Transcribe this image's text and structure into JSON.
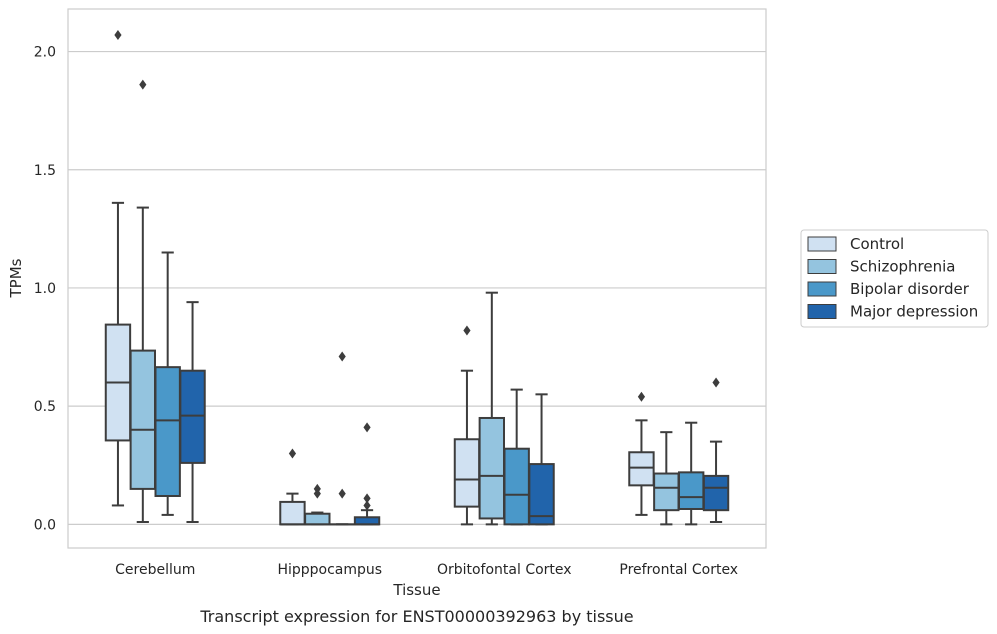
{
  "chart_data": {
    "type": "box",
    "caption": "Transcript expression for ENST00000392963 by tissue",
    "xlabel": "Tissue",
    "ylabel": "TPMs",
    "ylim": [
      -0.1,
      2.18
    ],
    "yticks": [
      0.0,
      0.5,
      1.0,
      1.5,
      2.0
    ],
    "ytick_labels": [
      "0.0",
      "0.5",
      "1.0",
      "1.5",
      "2.0"
    ],
    "grid": "horizontal",
    "legend_position": "right",
    "categories": [
      "Cerebellum",
      "Hipppocampus",
      "Orbitofontal Cortex",
      "Prefrontal Cortex"
    ],
    "series": [
      {
        "name": "Control",
        "color": "#d0e1f2",
        "boxes": [
          {
            "whislo": 0.08,
            "q1": 0.355,
            "med": 0.6,
            "q3": 0.845,
            "whishi": 1.36,
            "fliers": [
              2.07
            ]
          },
          {
            "whislo": 0.0,
            "q1": 0.0,
            "med": 0.0,
            "q3": 0.095,
            "whishi": 0.13,
            "fliers": [
              0.3
            ]
          },
          {
            "whislo": 0.0,
            "q1": 0.075,
            "med": 0.19,
            "q3": 0.36,
            "whishi": 0.65,
            "fliers": [
              0.82
            ]
          },
          {
            "whislo": 0.04,
            "q1": 0.165,
            "med": 0.24,
            "q3": 0.305,
            "whishi": 0.44,
            "fliers": [
              0.54
            ]
          }
        ]
      },
      {
        "name": "Schizophrenia",
        "color": "#94c4df",
        "boxes": [
          {
            "whislo": 0.01,
            "q1": 0.15,
            "med": 0.4,
            "q3": 0.735,
            "whishi": 1.34,
            "fliers": [
              1.86
            ]
          },
          {
            "whislo": 0.0,
            "q1": 0.0,
            "med": 0.0,
            "q3": 0.045,
            "whishi": 0.05,
            "fliers": [
              0.13,
              0.15
            ]
          },
          {
            "whislo": 0.0,
            "q1": 0.025,
            "med": 0.205,
            "q3": 0.45,
            "whishi": 0.98,
            "fliers": []
          },
          {
            "whislo": 0.0,
            "q1": 0.06,
            "med": 0.155,
            "q3": 0.215,
            "whishi": 0.39,
            "fliers": []
          }
        ]
      },
      {
        "name": "Bipolar disorder",
        "color": "#4a98c9",
        "boxes": [
          {
            "whislo": 0.04,
            "q1": 0.12,
            "med": 0.44,
            "q3": 0.665,
            "whishi": 1.15,
            "fliers": []
          },
          {
            "whislo": 0.0,
            "q1": 0.0,
            "med": 0.0,
            "q3": 0.0,
            "whishi": 0.0,
            "fliers": [
              0.13,
              0.71
            ]
          },
          {
            "whislo": 0.0,
            "q1": 0.0,
            "med": 0.125,
            "q3": 0.32,
            "whishi": 0.57,
            "fliers": []
          },
          {
            "whislo": 0.0,
            "q1": 0.065,
            "med": 0.115,
            "q3": 0.22,
            "whishi": 0.43,
            "fliers": []
          }
        ]
      },
      {
        "name": "Major depression",
        "color": "#2164ab",
        "boxes": [
          {
            "whislo": 0.01,
            "q1": 0.26,
            "med": 0.46,
            "q3": 0.65,
            "whishi": 0.94,
            "fliers": []
          },
          {
            "whislo": 0.0,
            "q1": 0.0,
            "med": 0.0,
            "q3": 0.03,
            "whishi": 0.06,
            "fliers": [
              0.08,
              0.11,
              0.41
            ]
          },
          {
            "whislo": 0.0,
            "q1": 0.0,
            "med": 0.035,
            "q3": 0.255,
            "whishi": 0.55,
            "fliers": []
          },
          {
            "whislo": 0.01,
            "q1": 0.06,
            "med": 0.155,
            "q3": 0.205,
            "whishi": 0.35,
            "fliers": [
              0.6
            ]
          }
        ]
      }
    ]
  }
}
